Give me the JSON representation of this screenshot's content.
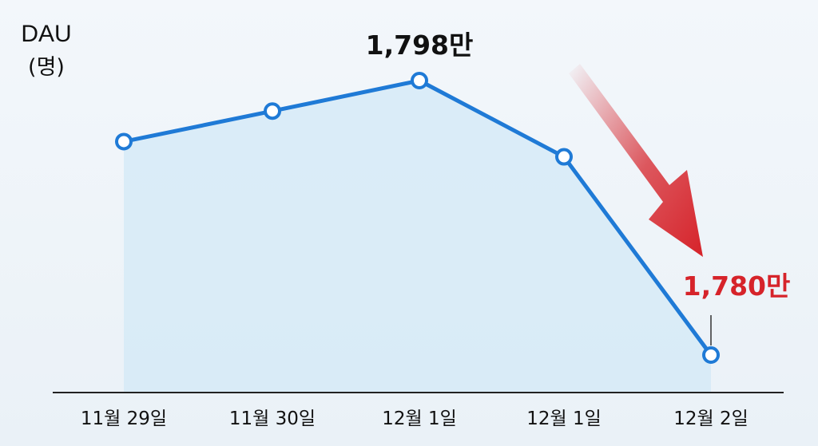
{
  "chart_data": {
    "type": "line",
    "ylabel_line1": "DAU",
    "ylabel_line2": "(명)",
    "categories": [
      "11월 29일",
      "11월 30일",
      "12월 1일",
      "12월 1일",
      "12월 2일"
    ],
    "series": [
      {
        "values": [
          1794,
          1796,
          1798,
          1793,
          1780
        ]
      }
    ],
    "annotations": [
      {
        "index": 2,
        "text": "1,798만",
        "color": "#111111"
      },
      {
        "index": 4,
        "text": "1,780만",
        "color": "#d6232a"
      }
    ],
    "colors": {
      "line": "#1f7ad6",
      "area": "#d6eaf7",
      "arrow": "#d6232a",
      "axis": "#222222"
    }
  }
}
